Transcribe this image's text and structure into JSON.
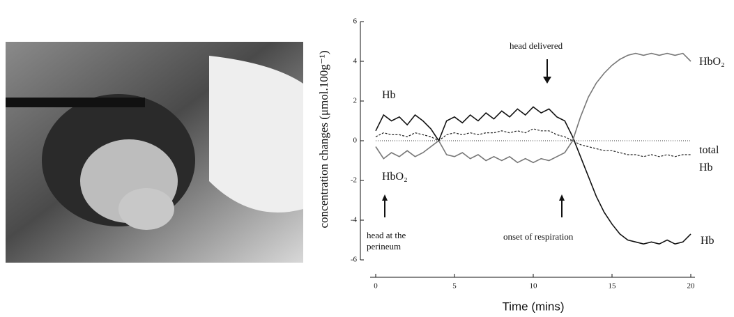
{
  "chart_data": {
    "type": "line",
    "xlabel": "Time (mins)",
    "ylabel": "concentration changes (μmol.100g⁻¹)",
    "x": [
      0,
      0.5,
      1,
      1.5,
      2,
      2.5,
      3,
      3.5,
      4,
      4.5,
      5,
      5.5,
      6,
      6.5,
      7,
      7.5,
      8,
      8.5,
      9,
      9.5,
      10,
      10.5,
      11,
      11.5,
      12,
      12.5,
      13,
      13.5,
      14,
      14.5,
      15,
      15.5,
      16,
      16.5,
      17,
      17.5,
      18,
      18.5,
      19,
      19.5,
      20
    ],
    "series": [
      {
        "name": "Hb",
        "color": "#111111",
        "dashed": false,
        "values": [
          0.5,
          1.3,
          1.0,
          1.2,
          0.8,
          1.3,
          1.0,
          0.6,
          0,
          1.0,
          1.2,
          0.9,
          1.3,
          1.0,
          1.4,
          1.1,
          1.5,
          1.2,
          1.6,
          1.3,
          1.7,
          1.4,
          1.6,
          1.2,
          1.0,
          0.2,
          -0.8,
          -1.8,
          -2.8,
          -3.6,
          -4.2,
          -4.7,
          -5.0,
          -5.1,
          -5.2,
          -5.1,
          -5.2,
          -5.0,
          -5.2,
          -5.1,
          -4.7
        ]
      },
      {
        "name": "HbO₂",
        "color": "#777777",
        "dashed": false,
        "values": [
          -0.3,
          -0.9,
          -0.6,
          -0.8,
          -0.5,
          -0.8,
          -0.6,
          -0.3,
          0,
          -0.7,
          -0.8,
          -0.6,
          -0.9,
          -0.7,
          -1.0,
          -0.8,
          -1.0,
          -0.8,
          -1.1,
          -0.9,
          -1.1,
          -0.9,
          -1.0,
          -0.8,
          -0.6,
          0,
          1.2,
          2.2,
          2.9,
          3.4,
          3.8,
          4.1,
          4.3,
          4.4,
          4.3,
          4.4,
          4.3,
          4.4,
          4.3,
          4.4,
          4.0
        ]
      },
      {
        "name": "total Hb",
        "color": "#222222",
        "dashed": true,
        "values": [
          0.2,
          0.4,
          0.3,
          0.3,
          0.2,
          0.4,
          0.3,
          0.2,
          0,
          0.3,
          0.4,
          0.3,
          0.4,
          0.3,
          0.4,
          0.4,
          0.5,
          0.4,
          0.5,
          0.4,
          0.6,
          0.5,
          0.5,
          0.3,
          0.2,
          0,
          -0.2,
          -0.3,
          -0.4,
          -0.5,
          -0.5,
          -0.6,
          -0.7,
          -0.7,
          -0.8,
          -0.7,
          -0.8,
          -0.7,
          -0.8,
          -0.7,
          -0.7
        ]
      }
    ],
    "annotations": [
      "Hb",
      "HbO₂",
      "head delivered",
      "head at the perineum",
      "onset of respiration"
    ],
    "xlim": [
      0,
      20
    ],
    "xticks": [
      0,
      5,
      10,
      15,
      20
    ],
    "ylim": [
      -6,
      6
    ],
    "yticks": [
      -6,
      -4,
      -2,
      0,
      2,
      4,
      6
    ],
    "zero_line": true
  }
}
